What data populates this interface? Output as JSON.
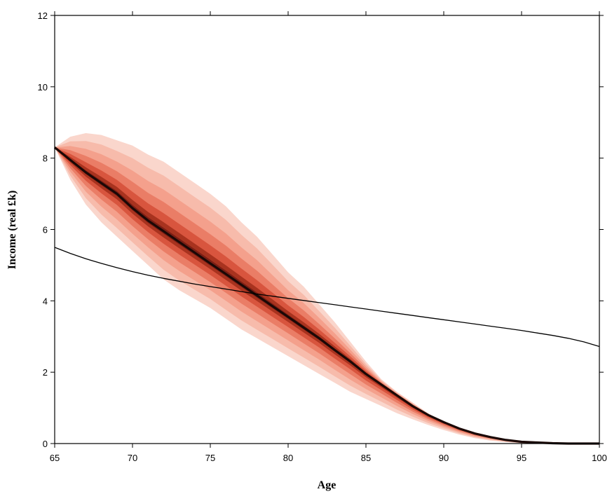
{
  "chart_data": {
    "type": "area",
    "xlabel": "Age",
    "ylabel": "Income (real £k)",
    "xlim": [
      65,
      100
    ],
    "ylim": [
      0,
      12
    ],
    "x_ticks": [
      65,
      70,
      75,
      80,
      85,
      90,
      95,
      100
    ],
    "y_ticks": [
      0,
      2,
      4,
      6,
      8,
      10,
      12
    ],
    "grid": false,
    "colors": {
      "fan_outer": "#fad6cc",
      "fan_mid": "#f4a08c",
      "fan_inner": "#d8553e",
      "fan_core": "#7a1e14",
      "median_line": "#1a0806",
      "reference_line": "#000000"
    },
    "x": [
      65,
      66,
      67,
      68,
      69,
      70,
      71,
      72,
      73,
      74,
      75,
      76,
      77,
      78,
      79,
      80,
      81,
      82,
      83,
      84,
      85,
      86,
      87,
      88,
      89,
      90,
      91,
      92,
      93,
      94,
      95,
      96,
      97,
      98,
      99,
      100
    ],
    "series": [
      {
        "role": "median",
        "values": [
          8.3,
          7.95,
          7.6,
          7.3,
          7.0,
          6.6,
          6.25,
          5.95,
          5.65,
          5.35,
          5.05,
          4.75,
          4.45,
          4.15,
          3.85,
          3.55,
          3.25,
          2.95,
          2.62,
          2.3,
          1.95,
          1.65,
          1.35,
          1.05,
          0.8,
          0.6,
          0.42,
          0.28,
          0.18,
          0.1,
          0.05,
          0.03,
          0.01,
          0.0,
          0.0,
          0.0
        ]
      },
      {
        "role": "fan-upper-outer",
        "values": [
          8.3,
          8.6,
          8.7,
          8.65,
          8.5,
          8.35,
          8.1,
          7.9,
          7.6,
          7.3,
          7.0,
          6.65,
          6.2,
          5.8,
          5.3,
          4.8,
          4.4,
          3.9,
          3.4,
          2.85,
          2.3,
          1.8,
          1.45,
          1.15,
          0.85,
          0.6,
          0.42,
          0.28,
          0.16,
          0.1,
          0.05,
          0.02,
          0.0,
          0.0,
          0.0,
          0.0
        ]
      },
      {
        "role": "fan-lower-outer",
        "values": [
          8.3,
          7.4,
          6.7,
          6.2,
          5.8,
          5.4,
          5.0,
          4.6,
          4.3,
          4.05,
          3.8,
          3.5,
          3.2,
          2.95,
          2.7,
          2.45,
          2.2,
          1.95,
          1.7,
          1.45,
          1.25,
          1.05,
          0.85,
          0.68,
          0.52,
          0.38,
          0.25,
          0.15,
          0.08,
          0.04,
          0.01,
          0.0,
          0.0,
          0.0,
          0.0,
          0.0
        ]
      },
      {
        "role": "reference",
        "values": [
          5.5,
          5.33,
          5.18,
          5.05,
          4.93,
          4.82,
          4.72,
          4.63,
          4.55,
          4.47,
          4.4,
          4.33,
          4.26,
          4.19,
          4.13,
          4.07,
          4.01,
          3.95,
          3.89,
          3.83,
          3.77,
          3.71,
          3.65,
          3.59,
          3.53,
          3.47,
          3.41,
          3.35,
          3.29,
          3.23,
          3.17,
          3.1,
          3.03,
          2.95,
          2.85,
          2.72
        ]
      }
    ]
  }
}
